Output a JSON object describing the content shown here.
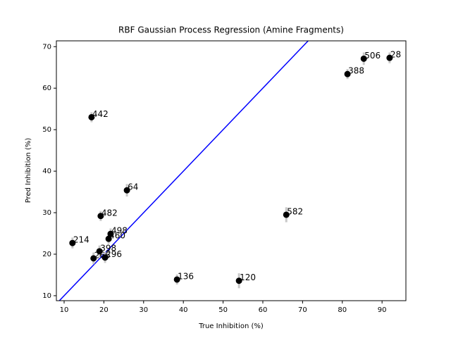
{
  "chart_data": {
    "type": "scatter",
    "title": "RBF Gaussian Process Regression (Amine Fragments)",
    "x_label": "True Inhibition (%)",
    "y_label": "Pred Inhibition (%)",
    "labels": [
      "442",
      "64",
      "482",
      "498",
      "460",
      "214",
      "398",
      "266",
      "296",
      "136",
      "120",
      "582",
      "388",
      "506",
      "28"
    ],
    "x": [
      16.9,
      25.8,
      19.2,
      21.7,
      21.2,
      12.1,
      18.9,
      17.4,
      20.3,
      38.4,
      54.0,
      65.9,
      81.3,
      85.4,
      91.9
    ],
    "y": [
      53.0,
      35.4,
      29.2,
      24.9,
      23.7,
      22.7,
      20.7,
      19.0,
      19.2,
      13.9,
      13.6,
      29.5,
      63.4,
      67.1,
      67.3
    ],
    "errors": [
      1.2,
      1.5,
      1.2,
      1.3,
      1.2,
      1.3,
      1.4,
      1.4,
      1.3,
      1.2,
      1.8,
      1.8,
      1.2,
      1.5,
      1.3
    ],
    "color": "#000000",
    "error_color": "#c8c8c8",
    "identity_line_color": "#0000ff",
    "xlim": [
      8.05,
      96.0
    ],
    "ylim": [
      8.8,
      71.4
    ],
    "xticks": [
      10,
      20,
      30,
      40,
      50,
      60,
      70,
      80,
      90
    ],
    "yticks": [
      10,
      20,
      30,
      40,
      50,
      60,
      70
    ]
  }
}
